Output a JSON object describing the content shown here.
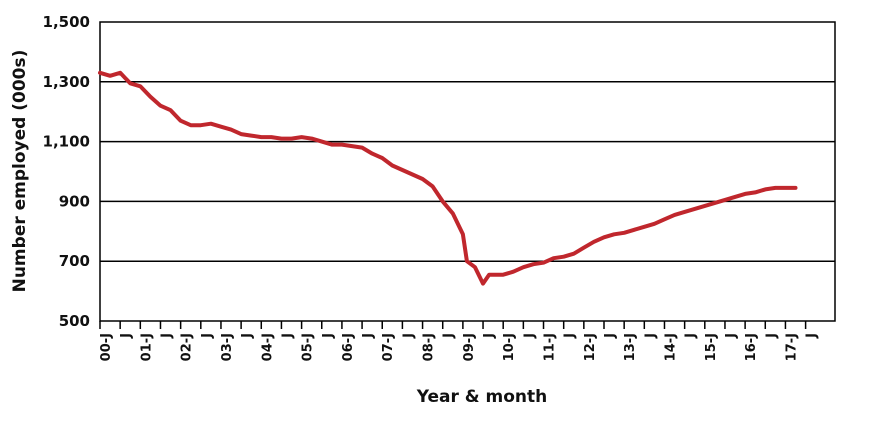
{
  "chart_data": {
    "type": "line",
    "xlabel": "Year & month",
    "ylabel": "Number employed (000s)",
    "ylim": [
      500,
      1500
    ],
    "yticks": [
      500,
      700,
      900,
      1100,
      1300,
      1500
    ],
    "ytick_labels": [
      "500",
      "700",
      "900",
      "1,100",
      "1,300",
      "1,500"
    ],
    "xtick_labels": [
      "00-J",
      "J",
      "01-J",
      "J",
      "02-J",
      "J",
      "03-J",
      "J",
      "04-J",
      "J",
      "05-J",
      "J",
      "06-J",
      "J",
      "07-J",
      "J",
      "08-J",
      "J",
      "09-J",
      "J",
      "10-J",
      "J",
      "11-J",
      "J",
      "12-J",
      "J",
      "13-J",
      "J",
      "14-J",
      "J",
      "15-J",
      "J",
      "16-J",
      "J",
      "17-J",
      "J"
    ],
    "grid": "horizontal",
    "line_color": "#c0272d",
    "series": [
      {
        "x": [
          2000.0,
          2000.25,
          2000.5,
          2000.75,
          2001.0,
          2001.25,
          2001.5,
          2001.75,
          2002.0,
          2002.25,
          2002.5,
          2002.75,
          2003.0,
          2003.25,
          2003.5,
          2003.75,
          2004.0,
          2004.25,
          2004.5,
          2004.75,
          2005.0,
          2005.25,
          2005.5,
          2005.75,
          2006.0,
          2006.25,
          2006.5,
          2006.75,
          2007.0,
          2007.25,
          2007.5,
          2007.75,
          2008.0,
          2008.25,
          2008.5,
          2008.75,
          2009.0,
          2009.1,
          2009.3,
          2009.5,
          2009.65,
          2009.75,
          2010.0,
          2010.25,
          2010.5,
          2010.75,
          2011.0,
          2011.25,
          2011.5,
          2011.75,
          2012.0,
          2012.25,
          2012.5,
          2012.75,
          2013.0,
          2013.25,
          2013.5,
          2013.75,
          2014.0,
          2014.25,
          2014.5,
          2014.75,
          2015.0,
          2015.25,
          2015.5,
          2015.75,
          2016.0,
          2016.25,
          2016.5,
          2016.75,
          2017.0,
          2017.25
        ],
        "y": [
          1330,
          1320,
          1330,
          1295,
          1285,
          1250,
          1220,
          1205,
          1170,
          1155,
          1155,
          1160,
          1150,
          1140,
          1125,
          1120,
          1115,
          1115,
          1110,
          1110,
          1115,
          1110,
          1100,
          1090,
          1090,
          1085,
          1080,
          1060,
          1045,
          1020,
          1005,
          990,
          975,
          950,
          900,
          860,
          790,
          700,
          680,
          625,
          655,
          655,
          655,
          665,
          680,
          690,
          695,
          710,
          715,
          725,
          745,
          765,
          780,
          790,
          795,
          805,
          815,
          825,
          840,
          855,
          865,
          875,
          885,
          895,
          905,
          915,
          925,
          930,
          940,
          945,
          945,
          945
        ]
      }
    ]
  }
}
